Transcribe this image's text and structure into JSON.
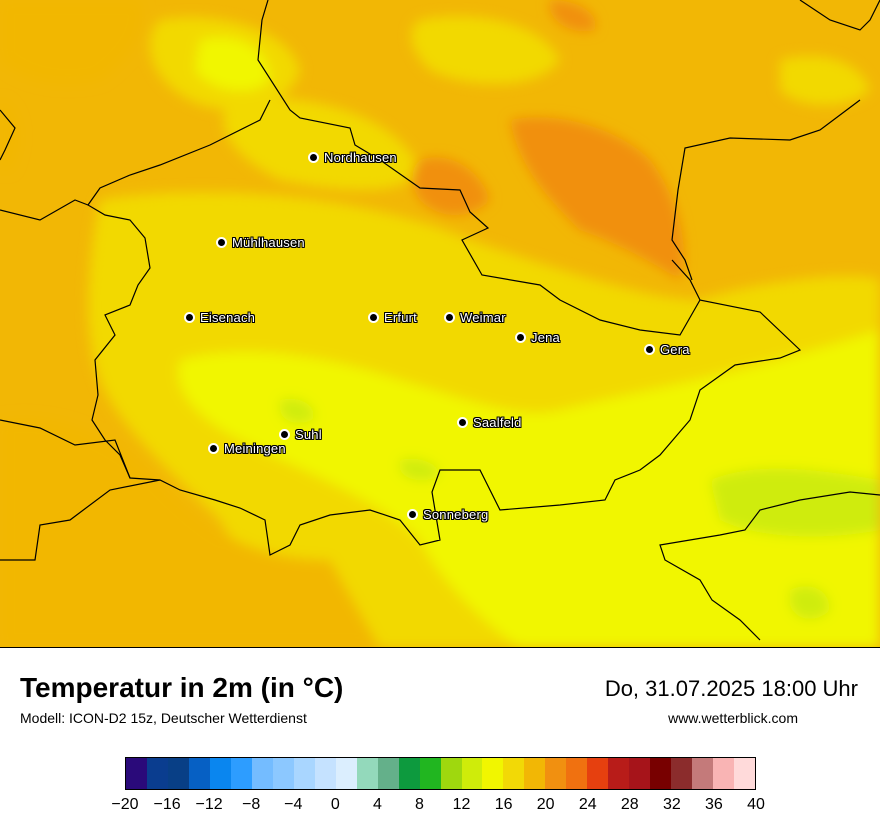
{
  "map": {
    "cities": [
      {
        "name": "Nordhausen"
      },
      {
        "name": "Mühlhausen"
      },
      {
        "name": "Eisenach"
      },
      {
        "name": "Erfurt"
      },
      {
        "name": "Weimar"
      },
      {
        "name": "Jena"
      },
      {
        "name": "Gera"
      },
      {
        "name": "Suhl"
      },
      {
        "name": "Meiningen"
      },
      {
        "name": "Saalfeld"
      },
      {
        "name": "Sonneberg"
      }
    ]
  },
  "footer": {
    "title": "Temperatur in 2m (in °C)",
    "model": "Modell: ICON-D2 15z, Deutscher Wetterdienst",
    "datetime": "Do, 31.07.2025 18:00 Uhr",
    "website": "www.wetterblick.com"
  },
  "legend": {
    "colors": [
      "#2a0a7a",
      "#0a3d8f",
      "#083f86",
      "#0660c4",
      "#0a86ef",
      "#2d9dff",
      "#74bcff",
      "#8cc8ff",
      "#a9d6ff",
      "#c5e2ff",
      "#dbeefe",
      "#93d9bb",
      "#64b08a",
      "#0d9a3e",
      "#21b620",
      "#9fd80e",
      "#cfec0a",
      "#f1f600",
      "#f2d906",
      "#f2b705",
      "#f19010",
      "#f07110",
      "#e6400f",
      "#b81c19",
      "#a6141a",
      "#780000",
      "#8b2c2c",
      "#c47a7a",
      "#f9b4b4",
      "#ffdada"
    ],
    "ticks": [
      "−20",
      "−16",
      "−12",
      "−8",
      "−4",
      "0",
      "4",
      "8",
      "12",
      "16",
      "20",
      "24",
      "28",
      "32",
      "36",
      "40"
    ]
  }
}
